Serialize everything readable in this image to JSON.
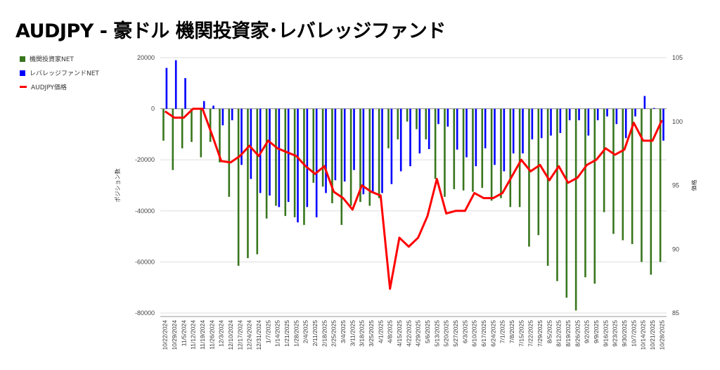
{
  "title": "AUDJPY - 豪ドル 機関投資家･レバレッジファンド",
  "chart_data": {
    "type": "bar",
    "title": "AUDJPY - 豪ドル 機関投資家･レバレッジファンド",
    "ylabel": "ポジション数",
    "y2label": "価格",
    "ylim": [
      -80000,
      20000
    ],
    "y2lim": [
      85,
      105
    ],
    "yticks": [
      "20000",
      "0",
      "-20000",
      "-40000",
      "-60000",
      "-80000"
    ],
    "y2ticks": [
      "105",
      "100",
      "95",
      "90",
      "85"
    ],
    "grid": true,
    "legend_position": "left",
    "categories": [
      "10/22/2024",
      "10/29/2024",
      "11/5/2024",
      "11/12/2024",
      "11/19/2024",
      "11/26/2024",
      "12/3/2024",
      "12/10/2024",
      "12/17/2024",
      "12/24/2024",
      "12/31/2024",
      "1/7/2025",
      "1/14/2025",
      "1/21/2025",
      "1/28/2025",
      "2/4/2025",
      "2/11/2025",
      "2/18/2025",
      "2/25/2025",
      "3/4/2025",
      "3/11/2025",
      "3/18/2025",
      "3/25/2025",
      "4/1/2025",
      "4/8/2025",
      "4/15/2025",
      "4/22/2025",
      "4/29/2025",
      "5/6/2025",
      "5/13/2025",
      "5/20/2025",
      "5/27/2025",
      "6/3/2025",
      "6/10/2025",
      "6/17/2025",
      "6/24/2025",
      "7/1/2025",
      "7/8/2025",
      "7/15/2025",
      "7/22/2025",
      "7/29/2025",
      "8/5/2025",
      "8/12/2025",
      "8/19/2025",
      "8/26/2025",
      "9/2/2025",
      "9/9/2025",
      "9/16/2025",
      "9/23/2025",
      "9/30/2025",
      "10/7/2025",
      "10/14/2025",
      "10/21/2025",
      "10/28/2025"
    ],
    "series": [
      {
        "name": "機関投資家NET",
        "type": "bar",
        "color": "#38761d",
        "axis": "left",
        "values": [
          -12500,
          -24000,
          -15500,
          -13000,
          -19000,
          -13000,
          -21000,
          -34500,
          -61500,
          -58500,
          -57000,
          -43000,
          -38000,
          -42000,
          -42500,
          -45500,
          -29000,
          -30500,
          -37000,
          -45500,
          -38000,
          -36500,
          -38000,
          -35000,
          -15500,
          -12000,
          -5000,
          -8000,
          -12000,
          -27500,
          -34500,
          -31500,
          -32000,
          -32500,
          -31000,
          -36000,
          -35000,
          -38500,
          -38500,
          -54000,
          -49500,
          -61500,
          -67500,
          -74000,
          -79000,
          -66000,
          -68500,
          -40500,
          -49000,
          -51500,
          -53000,
          -60000,
          -65000,
          -60000
        ]
      },
      {
        "name": "レバレッジファンドNET",
        "type": "bar",
        "color": "#0000ff",
        "axis": "left",
        "values": [
          16000,
          19000,
          12000,
          0,
          3000,
          1200,
          -6500,
          -4500,
          -22000,
          -27500,
          -33000,
          -34000,
          -38500,
          -36500,
          -44500,
          -38500,
          -42500,
          -33000,
          -28000,
          -28500,
          -24000,
          -33500,
          -33000,
          -33000,
          -29500,
          -24500,
          -22500,
          -17500,
          -15800,
          -6000,
          -7000,
          -16000,
          -19000,
          -22500,
          -15500,
          -22000,
          -24500,
          -17500,
          -17500,
          -12000,
          -11500,
          -10500,
          -9500,
          -4500,
          -4500,
          -10500,
          -4500,
          -3000,
          -6000,
          -11500,
          -3000,
          5000,
          300,
          -12500
        ]
      },
      {
        "name": "AUDJPY価格",
        "type": "line",
        "color": "#ff0000",
        "axis": "right",
        "values": [
          100.8,
          100.3,
          100.3,
          101,
          101,
          99,
          96.9,
          96.8,
          97.3,
          98.1,
          97.3,
          98.5,
          97.9,
          97.6,
          97.3,
          96.5,
          95.9,
          96.5,
          94.5,
          94,
          93.1,
          95,
          94.5,
          94.2,
          86.9,
          90.9,
          90.2,
          90.9,
          92.6,
          95.5,
          92.8,
          93,
          93,
          94.4,
          94,
          94,
          94.4,
          95.7,
          97,
          96.1,
          96.6,
          95.4,
          96.5,
          95.2,
          95.6,
          96.6,
          97,
          97.9,
          97.4,
          97.8,
          99.9,
          98.5,
          98.5,
          100.1
        ]
      }
    ]
  }
}
